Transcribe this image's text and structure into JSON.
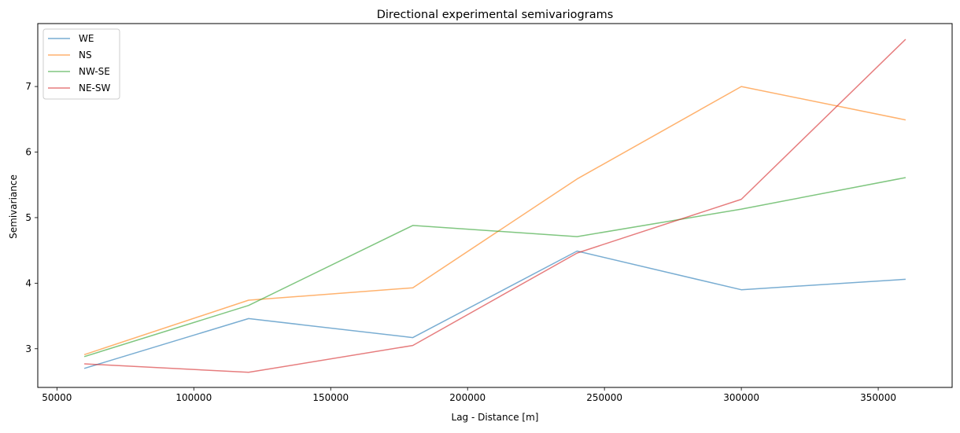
{
  "chart_data": {
    "type": "line",
    "title": "Directional experimental semivariograms",
    "xlabel": "Lag - Distance [m]",
    "ylabel": "Semivariance",
    "xlim": [
      43000,
      377000
    ],
    "ylim": [
      2.41,
      7.96
    ],
    "x_ticks": [
      50000,
      100000,
      150000,
      200000,
      250000,
      300000,
      350000
    ],
    "x_tick_labels": [
      "50000",
      "100000",
      "150000",
      "200000",
      "250000",
      "300000",
      "350000"
    ],
    "y_ticks": [
      3,
      4,
      5,
      6,
      7
    ],
    "y_tick_labels": [
      "3",
      "4",
      "5",
      "6",
      "7"
    ],
    "grid": false,
    "legend_position": "top-left",
    "x": [
      60000,
      120000,
      180000,
      240000,
      300000,
      360000
    ],
    "series": [
      {
        "name": "WE",
        "color": "#1f77b4",
        "values": [
          2.7,
          3.46,
          3.17,
          4.49,
          3.9,
          4.06
        ]
      },
      {
        "name": "NS",
        "color": "#ff7f0e",
        "values": [
          2.91,
          3.74,
          3.93,
          5.59,
          7.0,
          6.49
        ]
      },
      {
        "name": "NW-SE",
        "color": "#2ca02c",
        "values": [
          2.88,
          3.66,
          4.88,
          4.71,
          5.13,
          5.61
        ]
      },
      {
        "name": "NE-SW",
        "color": "#d62728",
        "values": [
          2.77,
          2.64,
          3.05,
          4.46,
          5.28,
          7.72
        ]
      }
    ]
  }
}
